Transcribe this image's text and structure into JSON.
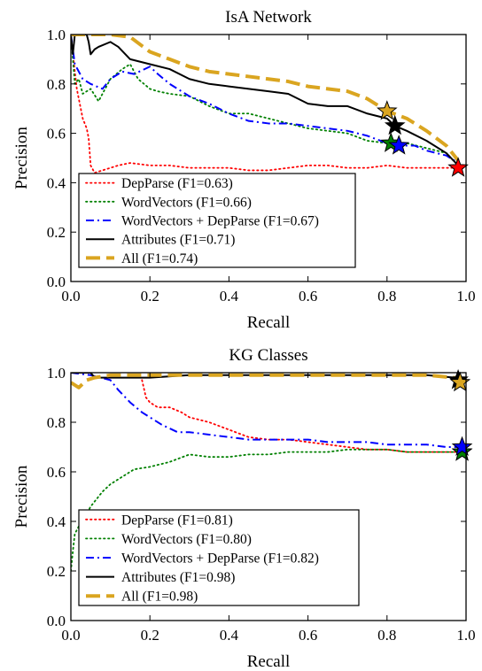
{
  "chart_data": [
    {
      "type": "line",
      "title": "IsA Network",
      "xlabel": "Recall",
      "ylabel": "Precision",
      "xlim": [
        0.0,
        1.0
      ],
      "ylim": [
        0.0,
        1.0
      ],
      "xticks": [
        "0.0",
        "0.2",
        "0.4",
        "0.6",
        "0.8",
        "1.0"
      ],
      "yticks": [
        "0.0",
        "0.2",
        "0.4",
        "0.6",
        "0.8",
        "1.0"
      ],
      "grid": false,
      "legend_position": "lower-left",
      "series": [
        {
          "name": "DepParse (F1=0.63)",
          "color": "#ff0000",
          "style": "dotted",
          "points": [
            [
              0.0,
              1.0
            ],
            [
              0.01,
              0.85
            ],
            [
              0.015,
              0.78
            ],
            [
              0.02,
              0.74
            ],
            [
              0.025,
              0.7
            ],
            [
              0.03,
              0.66
            ],
            [
              0.035,
              0.64
            ],
            [
              0.04,
              0.62
            ],
            [
              0.045,
              0.58
            ],
            [
              0.05,
              0.47
            ],
            [
              0.06,
              0.44
            ],
            [
              0.08,
              0.45
            ],
            [
              0.1,
              0.46
            ],
            [
              0.12,
              0.47
            ],
            [
              0.15,
              0.48
            ],
            [
              0.2,
              0.47
            ],
            [
              0.25,
              0.47
            ],
            [
              0.3,
              0.46
            ],
            [
              0.35,
              0.46
            ],
            [
              0.4,
              0.46
            ],
            [
              0.45,
              0.45
            ],
            [
              0.5,
              0.45
            ],
            [
              0.55,
              0.46
            ],
            [
              0.6,
              0.47
            ],
            [
              0.65,
              0.47
            ],
            [
              0.7,
              0.46
            ],
            [
              0.75,
              0.46
            ],
            [
              0.8,
              0.47
            ],
            [
              0.85,
              0.46
            ],
            [
              0.9,
              0.46
            ],
            [
              0.95,
              0.46
            ],
            [
              0.98,
              0.46
            ]
          ],
          "star": [
            0.98,
            0.46
          ]
        },
        {
          "name": "WordVectors (F1=0.66)",
          "color": "#008000",
          "style": "dotted",
          "points": [
            [
              0.0,
              1.0
            ],
            [
              0.01,
              0.8
            ],
            [
              0.02,
              0.82
            ],
            [
              0.03,
              0.76
            ],
            [
              0.05,
              0.78
            ],
            [
              0.07,
              0.73
            ],
            [
              0.1,
              0.82
            ],
            [
              0.13,
              0.86
            ],
            [
              0.15,
              0.88
            ],
            [
              0.17,
              0.82
            ],
            [
              0.2,
              0.78
            ],
            [
              0.22,
              0.77
            ],
            [
              0.25,
              0.76
            ],
            [
              0.3,
              0.75
            ],
            [
              0.35,
              0.71
            ],
            [
              0.4,
              0.68
            ],
            [
              0.45,
              0.68
            ],
            [
              0.5,
              0.66
            ],
            [
              0.55,
              0.64
            ],
            [
              0.6,
              0.62
            ],
            [
              0.65,
              0.61
            ],
            [
              0.7,
              0.6
            ],
            [
              0.75,
              0.57
            ],
            [
              0.8,
              0.56
            ],
            [
              0.85,
              0.56
            ],
            [
              0.9,
              0.54
            ],
            [
              0.95,
              0.52
            ],
            [
              0.98,
              0.47
            ]
          ],
          "star": [
            0.81,
            0.56
          ]
        },
        {
          "name": "WordVectors + DepParse (F1=0.67)",
          "color": "#0000ff",
          "style": "dashdot",
          "points": [
            [
              0.0,
              1.0
            ],
            [
              0.01,
              0.88
            ],
            [
              0.02,
              0.85
            ],
            [
              0.03,
              0.82
            ],
            [
              0.05,
              0.8
            ],
            [
              0.08,
              0.78
            ],
            [
              0.1,
              0.82
            ],
            [
              0.13,
              0.85
            ],
            [
              0.16,
              0.84
            ],
            [
              0.2,
              0.87
            ],
            [
              0.22,
              0.84
            ],
            [
              0.25,
              0.8
            ],
            [
              0.3,
              0.75
            ],
            [
              0.35,
              0.72
            ],
            [
              0.4,
              0.68
            ],
            [
              0.45,
              0.65
            ],
            [
              0.5,
              0.64
            ],
            [
              0.55,
              0.64
            ],
            [
              0.6,
              0.63
            ],
            [
              0.65,
              0.62
            ],
            [
              0.7,
              0.61
            ],
            [
              0.75,
              0.59
            ],
            [
              0.8,
              0.56
            ],
            [
              0.83,
              0.55
            ],
            [
              0.87,
              0.55
            ],
            [
              0.9,
              0.53
            ],
            [
              0.95,
              0.51
            ],
            [
              0.98,
              0.48
            ]
          ],
          "star": [
            0.83,
            0.55
          ]
        },
        {
          "name": "Attributes (F1=0.71)",
          "color": "#000000",
          "style": "solid",
          "points": [
            [
              0.0,
              1.0
            ],
            [
              0.005,
              0.92
            ],
            [
              0.01,
              1.0
            ],
            [
              0.04,
              1.0
            ],
            [
              0.045,
              0.97
            ],
            [
              0.05,
              0.92
            ],
            [
              0.06,
              0.94
            ],
            [
              0.07,
              0.95
            ],
            [
              0.1,
              0.97
            ],
            [
              0.12,
              0.95
            ],
            [
              0.15,
              0.9
            ],
            [
              0.2,
              0.88
            ],
            [
              0.25,
              0.86
            ],
            [
              0.3,
              0.82
            ],
            [
              0.35,
              0.8
            ],
            [
              0.4,
              0.79
            ],
            [
              0.45,
              0.78
            ],
            [
              0.5,
              0.77
            ],
            [
              0.55,
              0.76
            ],
            [
              0.6,
              0.72
            ],
            [
              0.65,
              0.71
            ],
            [
              0.7,
              0.71
            ],
            [
              0.75,
              0.68
            ],
            [
              0.8,
              0.66
            ],
            [
              0.82,
              0.63
            ],
            [
              0.85,
              0.61
            ],
            [
              0.9,
              0.57
            ],
            [
              0.95,
              0.52
            ],
            [
              0.98,
              0.47
            ]
          ],
          "star": [
            0.82,
            0.63
          ]
        },
        {
          "name": "All (F1=0.74)",
          "color": "#daa520",
          "style": "dashed",
          "points": [
            [
              0.0,
              1.0
            ],
            [
              0.1,
              1.0
            ],
            [
              0.15,
              0.99
            ],
            [
              0.2,
              0.93
            ],
            [
              0.25,
              0.9
            ],
            [
              0.3,
              0.87
            ],
            [
              0.35,
              0.85
            ],
            [
              0.4,
              0.84
            ],
            [
              0.45,
              0.83
            ],
            [
              0.5,
              0.82
            ],
            [
              0.55,
              0.81
            ],
            [
              0.6,
              0.79
            ],
            [
              0.65,
              0.78
            ],
            [
              0.7,
              0.77
            ],
            [
              0.75,
              0.74
            ],
            [
              0.8,
              0.69
            ],
            [
              0.85,
              0.66
            ],
            [
              0.9,
              0.61
            ],
            [
              0.95,
              0.55
            ],
            [
              0.98,
              0.49
            ]
          ],
          "star": [
            0.8,
            0.69
          ]
        }
      ]
    },
    {
      "type": "line",
      "title": "KG Classes",
      "xlabel": "Recall",
      "ylabel": "Precision",
      "xlim": [
        0.0,
        1.0
      ],
      "ylim": [
        0.0,
        1.0
      ],
      "xticks": [
        "0.0",
        "0.2",
        "0.4",
        "0.6",
        "0.8",
        "1.0"
      ],
      "yticks": [
        "0.0",
        "0.2",
        "0.4",
        "0.6",
        "0.8",
        "1.0"
      ],
      "grid": false,
      "legend_position": "lower-left",
      "series": [
        {
          "name": "DepParse (F1=0.81)",
          "color": "#ff0000",
          "style": "dotted",
          "points": [
            [
              0.18,
              0.97
            ],
            [
              0.19,
              0.9
            ],
            [
              0.2,
              0.88
            ],
            [
              0.22,
              0.86
            ],
            [
              0.25,
              0.86
            ],
            [
              0.28,
              0.84
            ],
            [
              0.3,
              0.82
            ],
            [
              0.35,
              0.8
            ],
            [
              0.4,
              0.77
            ],
            [
              0.45,
              0.74
            ],
            [
              0.5,
              0.73
            ],
            [
              0.55,
              0.73
            ],
            [
              0.6,
              0.72
            ],
            [
              0.65,
              0.71
            ],
            [
              0.7,
              0.7
            ],
            [
              0.75,
              0.69
            ],
            [
              0.8,
              0.69
            ],
            [
              0.85,
              0.68
            ],
            [
              0.9,
              0.68
            ],
            [
              0.95,
              0.68
            ],
            [
              0.99,
              0.68
            ]
          ],
          "star": [
            0.99,
            0.68
          ]
        },
        {
          "name": "WordVectors (F1=0.80)",
          "color": "#008000",
          "style": "dotted",
          "points": [
            [
              0.0,
              0.2
            ],
            [
              0.005,
              0.28
            ],
            [
              0.01,
              0.35
            ],
            [
              0.02,
              0.38
            ],
            [
              0.03,
              0.4
            ],
            [
              0.05,
              0.46
            ],
            [
              0.08,
              0.52
            ],
            [
              0.1,
              0.55
            ],
            [
              0.13,
              0.58
            ],
            [
              0.16,
              0.61
            ],
            [
              0.2,
              0.62
            ],
            [
              0.25,
              0.64
            ],
            [
              0.3,
              0.67
            ],
            [
              0.35,
              0.66
            ],
            [
              0.4,
              0.66
            ],
            [
              0.45,
              0.67
            ],
            [
              0.5,
              0.67
            ],
            [
              0.55,
              0.68
            ],
            [
              0.6,
              0.68
            ],
            [
              0.65,
              0.68
            ],
            [
              0.7,
              0.69
            ],
            [
              0.75,
              0.69
            ],
            [
              0.8,
              0.69
            ],
            [
              0.85,
              0.68
            ],
            [
              0.9,
              0.68
            ],
            [
              0.95,
              0.68
            ],
            [
              0.99,
              0.68
            ]
          ],
          "star": [
            0.99,
            0.68
          ]
        },
        {
          "name": "WordVectors + DepParse (F1=0.82)",
          "color": "#0000ff",
          "style": "dashdot",
          "points": [
            [
              0.0,
              1.0
            ],
            [
              0.05,
              0.99
            ],
            [
              0.1,
              0.97
            ],
            [
              0.12,
              0.93
            ],
            [
              0.15,
              0.88
            ],
            [
              0.18,
              0.84
            ],
            [
              0.2,
              0.82
            ],
            [
              0.23,
              0.79
            ],
            [
              0.27,
              0.76
            ],
            [
              0.3,
              0.76
            ],
            [
              0.35,
              0.75
            ],
            [
              0.4,
              0.74
            ],
            [
              0.45,
              0.73
            ],
            [
              0.5,
              0.73
            ],
            [
              0.55,
              0.73
            ],
            [
              0.6,
              0.73
            ],
            [
              0.65,
              0.72
            ],
            [
              0.7,
              0.72
            ],
            [
              0.75,
              0.72
            ],
            [
              0.8,
              0.71
            ],
            [
              0.85,
              0.71
            ],
            [
              0.9,
              0.71
            ],
            [
              0.95,
              0.7
            ],
            [
              0.99,
              0.7
            ]
          ],
          "star": [
            0.99,
            0.7
          ]
        },
        {
          "name": "Attributes (F1=0.98)",
          "color": "#000000",
          "style": "solid",
          "points": [
            [
              0.0,
              1.0
            ],
            [
              0.05,
              1.0
            ],
            [
              0.06,
              0.98
            ],
            [
              0.1,
              0.98
            ],
            [
              0.2,
              0.98
            ],
            [
              0.3,
              0.99
            ],
            [
              0.4,
              0.99
            ],
            [
              0.5,
              0.99
            ],
            [
              0.6,
              0.99
            ],
            [
              0.7,
              0.99
            ],
            [
              0.8,
              0.99
            ],
            [
              0.9,
              0.99
            ],
            [
              0.97,
              0.98
            ],
            [
              0.985,
              0.97
            ]
          ],
          "star": [
            0.98,
            0.97
          ]
        },
        {
          "name": "All (F1=0.98)",
          "color": "#daa520",
          "style": "dashed",
          "points": [
            [
              0.0,
              0.96
            ],
            [
              0.02,
              0.94
            ],
            [
              0.04,
              0.97
            ],
            [
              0.06,
              0.98
            ],
            [
              0.1,
              0.99
            ],
            [
              0.2,
              0.99
            ],
            [
              0.3,
              0.99
            ],
            [
              0.4,
              0.99
            ],
            [
              0.5,
              0.99
            ],
            [
              0.6,
              0.99
            ],
            [
              0.7,
              0.99
            ],
            [
              0.8,
              0.99
            ],
            [
              0.9,
              0.99
            ],
            [
              0.97,
              0.98
            ],
            [
              0.99,
              0.96
            ]
          ],
          "star": [
            0.985,
            0.96
          ]
        }
      ]
    }
  ]
}
